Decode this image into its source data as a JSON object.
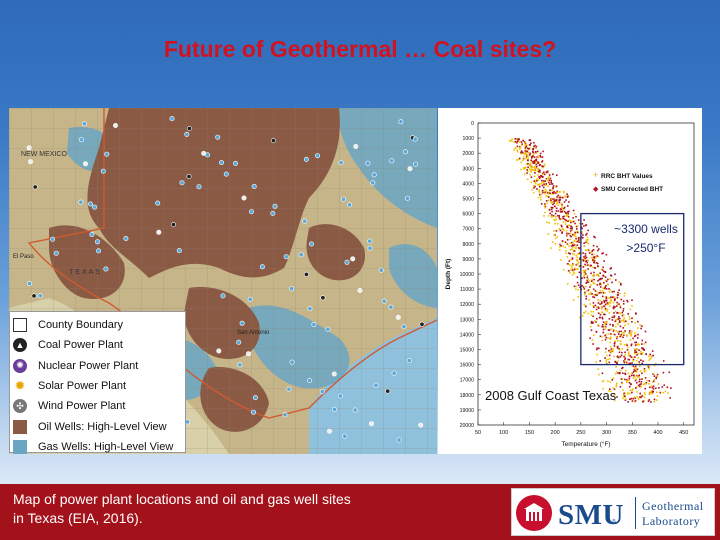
{
  "slide": {
    "title": "Future of Geothermal …  Coal sites?",
    "caption": "Map of power plant locations and oil and gas well sites in Texas (EIA, 2016)."
  },
  "map": {
    "place_labels": [
      "NEW MEXICO",
      "TEXAS",
      "El Paso",
      "San Antonio"
    ],
    "legend": [
      {
        "label": "County Boundary",
        "icon": "county-boundary-icon"
      },
      {
        "label": "Coal Power Plant",
        "icon": "coal-plant-icon"
      },
      {
        "label": "Nuclear Power Plant",
        "icon": "nuclear-plant-icon"
      },
      {
        "label": "Solar Power Plant",
        "icon": "solar-plant-icon"
      },
      {
        "label": "Wind Power Plant",
        "icon": "wind-plant-icon"
      },
      {
        "label": "Oil Wells: High-Level View",
        "icon": "oil-wells-icon"
      },
      {
        "label": "Gas Wells: High-Level View",
        "icon": "gas-wells-icon"
      }
    ],
    "colors": {
      "oil": "#8a5a44",
      "gas": "#6aa6c4",
      "land": "#c7b58a",
      "water": "#8fc0dc"
    }
  },
  "chart_data": {
    "type": "scatter",
    "title": "",
    "xlabel": "Temperature (°F)",
    "ylabel": "Depth (Ft)",
    "xlim": [
      50,
      470
    ],
    "ylim": [
      20000,
      0
    ],
    "x_ticks": [
      50,
      100,
      150,
      200,
      250,
      300,
      350,
      400,
      450
    ],
    "y_ticks": [
      0,
      1000,
      2000,
      3000,
      4000,
      5000,
      6000,
      7000,
      8000,
      9000,
      10000,
      11000,
      12000,
      13000,
      14000,
      15000,
      16000,
      17000,
      18000,
      19000,
      20000
    ],
    "legend_position": "top-right",
    "series": [
      {
        "name": "RRC BHT Values",
        "color": "#f2c200",
        "marker": "plus"
      },
      {
        "name": "SMU Corrected BHT",
        "color": "#b01020",
        "marker": "diamond"
      }
    ],
    "trend_band": [
      {
        "depth": 1000,
        "t_min": 110,
        "t_max": 160
      },
      {
        "depth": 4000,
        "t_min": 150,
        "t_max": 215
      },
      {
        "depth": 8000,
        "t_min": 195,
        "t_max": 290
      },
      {
        "depth": 12000,
        "t_min": 245,
        "t_max": 360
      },
      {
        "depth": 16000,
        "t_min": 280,
        "t_max": 420
      },
      {
        "depth": 18500,
        "t_min": 300,
        "t_max": 440
      }
    ],
    "highlight_box": {
      "x": [
        250,
        450
      ],
      "y": [
        6000,
        16000
      ]
    },
    "annotations": [
      {
        "text": "~3300 wells",
        "role": "box-label-1"
      },
      {
        "text": ">250°F",
        "role": "box-label-2"
      },
      {
        "text": "2008 Gulf Coast Texas",
        "role": "caption"
      }
    ]
  },
  "logo": {
    "wordmark": "SMU",
    "tm": "®",
    "line1": "Geothermal",
    "line2": "Laboratory"
  }
}
